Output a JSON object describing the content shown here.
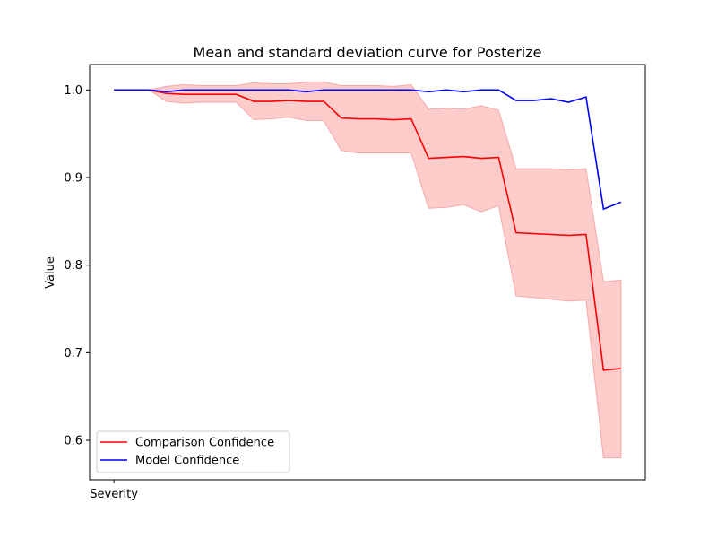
{
  "chart_data": {
    "type": "line",
    "title": "Mean and standard deviation curve for Posterize",
    "xlabel": "",
    "ylabel": "Value",
    "x_tick_labels": [
      "Severity"
    ],
    "ylim": [
      0.555,
      1.029
    ],
    "y_ticks": [
      0.6,
      0.7,
      0.8,
      0.9,
      1.0
    ],
    "y_tick_labels": [
      "0.6",
      "0.7",
      "0.8",
      "0.9",
      "1.0"
    ],
    "grid": false,
    "legend_position": "lower-left",
    "x": [
      0,
      1,
      2,
      3,
      4,
      5,
      6,
      7,
      8,
      9,
      10,
      11,
      12,
      13,
      14,
      15,
      16,
      17,
      18,
      19,
      20,
      21,
      22,
      23,
      24,
      25,
      26,
      27,
      28,
      29
    ],
    "series": [
      {
        "name": "Comparison Confidence",
        "color": "#ff0000",
        "band_color": "#ffcccc",
        "values": [
          1.0,
          1.0,
          1.0,
          0.996,
          0.995,
          0.995,
          0.995,
          0.995,
          0.987,
          0.987,
          0.988,
          0.987,
          0.987,
          0.968,
          0.967,
          0.967,
          0.966,
          0.967,
          0.922,
          0.923,
          0.924,
          0.922,
          0.923,
          0.837,
          0.836,
          0.835,
          0.834,
          0.835,
          0.68,
          0.682
        ],
        "std_lower": [
          1.0,
          1.0,
          1.0,
          0.987,
          0.985,
          0.986,
          0.986,
          0.986,
          0.966,
          0.967,
          0.969,
          0.965,
          0.965,
          0.931,
          0.928,
          0.928,
          0.928,
          0.928,
          0.865,
          0.866,
          0.869,
          0.861,
          0.868,
          0.765,
          0.763,
          0.761,
          0.759,
          0.76,
          0.58,
          0.58
        ],
        "std_upper": [
          1.0,
          1.0,
          1.0,
          1.004,
          1.006,
          1.005,
          1.005,
          1.005,
          1.008,
          1.007,
          1.007,
          1.009,
          1.009,
          1.005,
          1.005,
          1.005,
          1.004,
          1.006,
          0.978,
          0.979,
          0.978,
          0.982,
          0.977,
          0.91,
          0.91,
          0.91,
          0.909,
          0.91,
          0.781,
          0.783
        ]
      },
      {
        "name": "Model Confidence",
        "color": "#0000ff",
        "values": [
          1.0,
          1.0,
          1.0,
          0.998,
          1.0,
          1.0,
          1.0,
          1.0,
          1.0,
          1.0,
          1.0,
          0.998,
          1.0,
          1.0,
          1.0,
          1.0,
          1.0,
          1.0,
          0.998,
          1.0,
          0.998,
          1.0,
          1.0,
          0.988,
          0.988,
          0.99,
          0.986,
          0.992,
          0.864,
          0.872
        ]
      }
    ]
  }
}
